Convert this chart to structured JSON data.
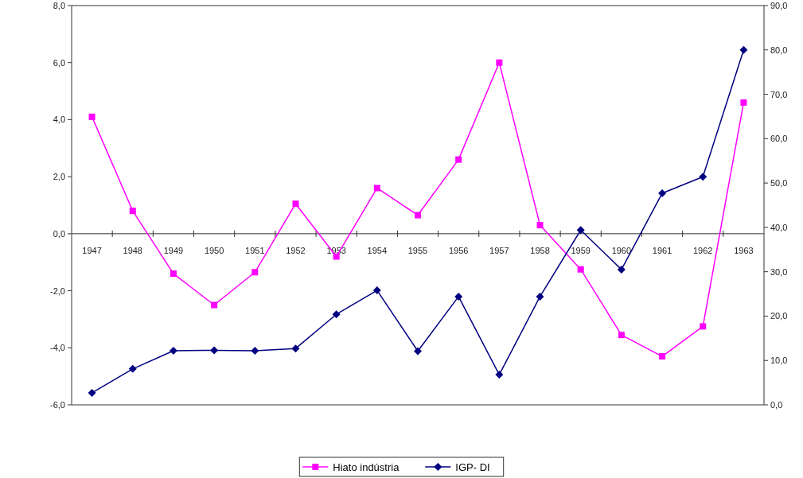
{
  "chart_data": {
    "type": "line",
    "categories": [
      "1947",
      "1948",
      "1949",
      "1950",
      "1951",
      "1952",
      "1953",
      "1954",
      "1955",
      "1956",
      "1957",
      "1958",
      "1959",
      "1960",
      "1961",
      "1962",
      "1963"
    ],
    "series": [
      {
        "name": "Hiato indústria",
        "color": "#ff00ff",
        "marker": "square",
        "values": [
          4.1,
          0.8,
          -1.4,
          -2.5,
          -1.35,
          1.05,
          -0.8,
          1.6,
          0.65,
          2.6,
          6.0,
          0.3,
          -1.25,
          -3.55,
          -4.3,
          -3.25,
          4.6
        ]
      },
      {
        "name": "IGP- DI",
        "color": "#000080",
        "marker": "diamond",
        "axis": "y2",
        "values": [
          2.7,
          8.1,
          12.2,
          12.3,
          12.2,
          12.7,
          20.4,
          25.8,
          12.1,
          24.4,
          6.8,
          24.4,
          39.4,
          30.5,
          47.7,
          51.4,
          80.0
        ]
      }
    ],
    "ylim": [
      -6,
      8
    ],
    "yticks": [
      {
        "value": -6,
        "label": "-6,0"
      },
      {
        "value": -4,
        "label": "-4,0"
      },
      {
        "value": -2,
        "label": "-2,0"
      },
      {
        "value": 0,
        "label": "0,0"
      },
      {
        "value": 2,
        "label": "2,0"
      },
      {
        "value": 4,
        "label": "4,0"
      },
      {
        "value": 6,
        "label": "6,0"
      },
      {
        "value": 8,
        "label": "8,0"
      }
    ],
    "y2lim": [
      0,
      90
    ],
    "y2ticks": [
      {
        "value": 0,
        "label": "0,0"
      },
      {
        "value": 10,
        "label": "10,0"
      },
      {
        "value": 20,
        "label": "20,0"
      },
      {
        "value": 30,
        "label": "30,0"
      },
      {
        "value": 40,
        "label": "40,0"
      },
      {
        "value": 50,
        "label": "50,0"
      },
      {
        "value": 60,
        "label": "60,0"
      },
      {
        "value": 70,
        "label": "70,0"
      },
      {
        "value": 80,
        "label": "80,0"
      },
      {
        "value": 90,
        "label": "90,0"
      }
    ],
    "grid": false,
    "legend": "bottom"
  }
}
